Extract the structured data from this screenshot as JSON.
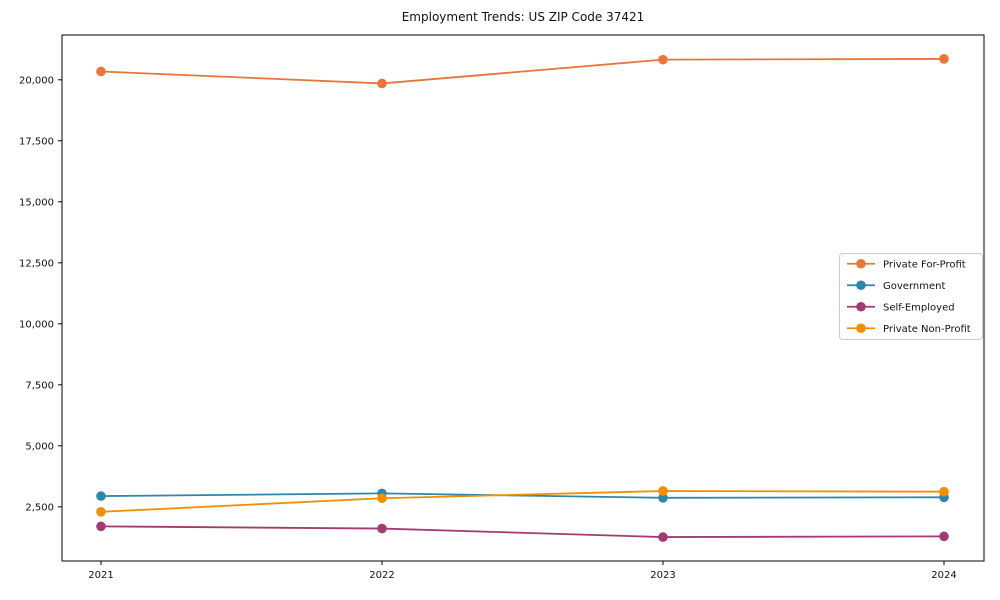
{
  "page": {
    "title": "Employment Trends: US ZIP Code 37421"
  },
  "chart_data": {
    "type": "line",
    "title": "Employment Trends: US ZIP Code 37421",
    "xlabel": "",
    "ylabel": "",
    "grid": false,
    "marker": "o",
    "legend_position": "center right",
    "x": [
      2021,
      2022,
      2023,
      2024
    ],
    "x_tick_labels": [
      "2021",
      "2022",
      "2023",
      "2024"
    ],
    "ylim": [
      280,
      21835
    ],
    "yticks": [
      2500,
      5000,
      7500,
      10000,
      12500,
      15000,
      17500,
      20000
    ],
    "ytick_labels": [
      "2,500",
      "5,000",
      "7,500",
      "10,000",
      "12,500",
      "15,000",
      "17,500",
      "20,000"
    ],
    "series": [
      {
        "name": "Private For-Profit",
        "color": "#E8763B",
        "values": [
          20340,
          19850,
          20825,
          20855
        ]
      },
      {
        "name": "Government",
        "color": "#2E86AB",
        "values": [
          2940,
          3050,
          2870,
          2890
        ]
      },
      {
        "name": "Self-Employed",
        "color": "#A23B72",
        "values": [
          1700,
          1610,
          1260,
          1290
        ]
      },
      {
        "name": "Private Non-Profit",
        "color": "#F18F01",
        "values": [
          2295,
          2850,
          3150,
          3120
        ]
      }
    ],
    "colors": {
      "spine": "#000000",
      "tick_label": "#111111",
      "legend_border": "#cccccc",
      "legend_bg": "#ffffff",
      "plot_bg": "#ffffff"
    }
  }
}
